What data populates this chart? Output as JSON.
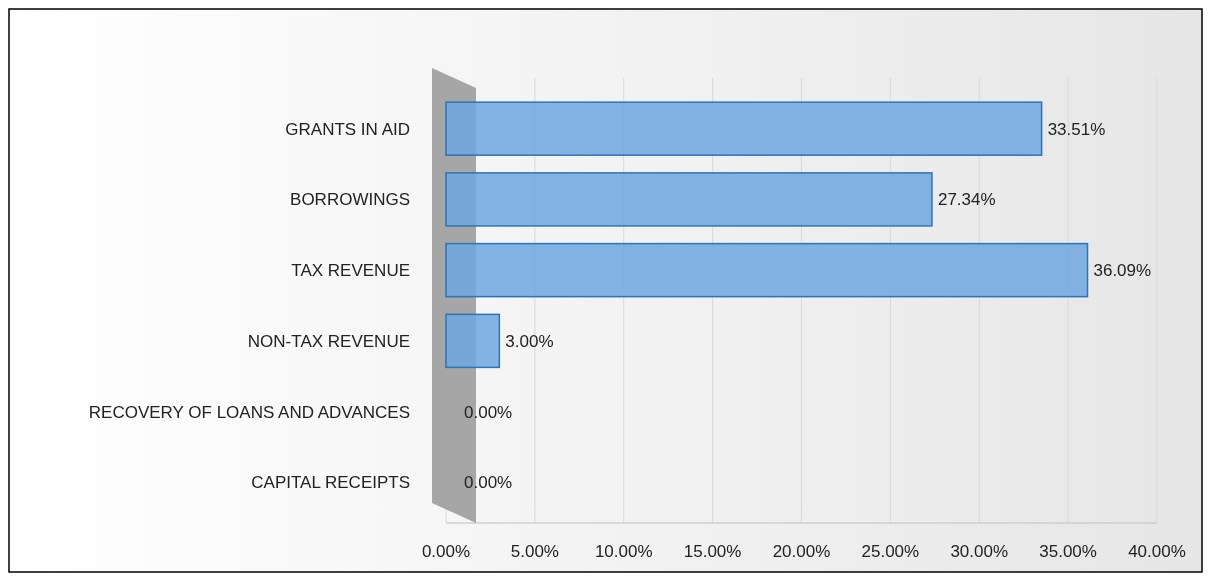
{
  "chart_data": {
    "type": "bar",
    "orientation": "horizontal",
    "categories": [
      "GRANTS IN AID",
      "BORROWINGS",
      "TAX REVENUE",
      "NON-TAX REVENUE",
      "RECOVERY OF LOANS AND ADVANCES",
      "CAPITAL RECEIPTS"
    ],
    "values": [
      33.51,
      27.34,
      36.09,
      3.0,
      0.0,
      0.0
    ],
    "value_labels": [
      "33.51%",
      "27.34%",
      "36.09%",
      "3.00%",
      "0.00%",
      "0.00%"
    ],
    "color": "#6fa6e0",
    "xlim": [
      0,
      40
    ],
    "xticks": [
      {
        "value": 0,
        "label": "0.00%"
      },
      {
        "value": 5,
        "label": "5.00%"
      },
      {
        "value": 10,
        "label": "10.00%"
      },
      {
        "value": 15,
        "label": "15.00%"
      },
      {
        "value": 20,
        "label": "20.00%"
      },
      {
        "value": 25,
        "label": "25.00%"
      },
      {
        "value": 30,
        "label": "30.00%"
      },
      {
        "value": 35,
        "label": "35.00%"
      },
      {
        "value": 40,
        "label": "40.00%"
      }
    ],
    "grid": "x"
  }
}
